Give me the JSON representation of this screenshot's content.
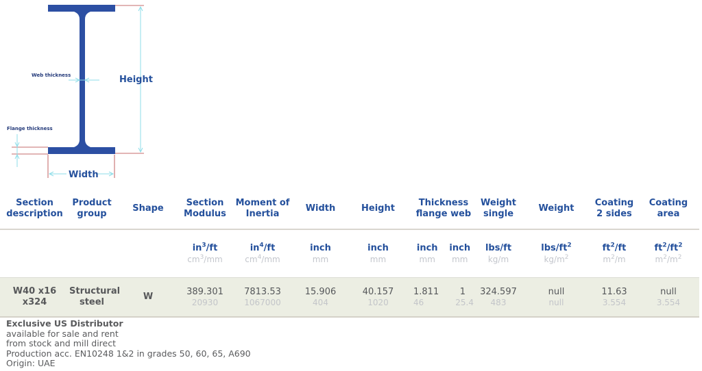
{
  "diagram": {
    "label_height": "Height",
    "label_width": "Width",
    "label_web_thickness": "Web thickness",
    "label_flange_thickness": "Flange thickness",
    "colors": {
      "beam": "#2c4fa3",
      "dimension_line": "#8ddde8",
      "edge_line": "#b23a3a"
    }
  },
  "table": {
    "headers": {
      "section_description": "Section description",
      "product_group": "Product group",
      "shape": "Shape",
      "section_modulus": "Section Modulus",
      "moment_of_inertia": "Moment of Inertia",
      "width": "Width",
      "height": "Height",
      "thickness": "Thickness flange web",
      "weight_single": "Weight single",
      "weight": "Weight",
      "coating_2_sides": "Coating 2 sides",
      "coating_area": "Coating area"
    },
    "units": {
      "section_modulus": {
        "imperial_base": "in",
        "imperial_exp": "3",
        "imperial_suffix": "/ft",
        "metric_base": "cm",
        "metric_exp": "3",
        "metric_suffix": "/mm"
      },
      "moment_of_inertia": {
        "imperial_base": "in",
        "imperial_exp": "4",
        "imperial_suffix": "/ft",
        "metric_base": "cm",
        "metric_exp": "4",
        "metric_suffix": "/mm"
      },
      "width": {
        "imperial": "inch",
        "metric": "mm"
      },
      "height": {
        "imperial": "inch",
        "metric": "mm"
      },
      "thickness_flange": {
        "imperial": "inch",
        "metric": "mm"
      },
      "thickness_web": {
        "imperial": "inch",
        "metric": "mm"
      },
      "weight_single": {
        "imperial": "lbs/ft",
        "metric": "kg/m"
      },
      "weight": {
        "imperial_base": "lbs/ft",
        "imperial_exp": "2",
        "metric_base": "kg/m",
        "metric_exp": "2"
      },
      "coating_2_sides": {
        "imperial_base": "ft",
        "imperial_exp": "2",
        "imperial_suffix": "/ft",
        "metric_base": "m",
        "metric_exp": "2",
        "metric_suffix": "/m"
      },
      "coating_area": {
        "imperial_base": "ft",
        "imperial_exp": "2",
        "imperial_mid": "/ft",
        "imperial_exp2": "2",
        "metric_base": "m",
        "metric_exp": "2",
        "metric_mid": "/m",
        "metric_exp2": "2"
      }
    },
    "row": {
      "section_description": "W40 x16 x324",
      "product_group": "Structural steel",
      "shape": "W",
      "section_modulus": {
        "imperial": "389.301",
        "metric": "20930"
      },
      "moment_of_inertia": {
        "imperial": "7813.53",
        "metric": "1067000"
      },
      "width": {
        "imperial": "15.906",
        "metric": "404"
      },
      "height": {
        "imperial": "40.157",
        "metric": "1020"
      },
      "thickness_flange": {
        "imperial": "1.811",
        "metric": "46"
      },
      "thickness_web": {
        "imperial": "1",
        "metric": "25.4"
      },
      "weight_single": {
        "imperial": "324.597",
        "metric": "483"
      },
      "weight": {
        "imperial": "null",
        "metric": "null"
      },
      "coating_2_sides": {
        "imperial": "11.63",
        "metric": "3.554"
      },
      "coating_area": {
        "imperial": "null",
        "metric": "3.554"
      }
    }
  },
  "notes": {
    "title": "Exclusive US Distributor",
    "lines": [
      "available for sale and rent",
      "from stock and mill direct",
      "Production acc. EN10248 1&2 in grades 50, 60, 65, A690",
      "Origin: UAE"
    ]
  }
}
